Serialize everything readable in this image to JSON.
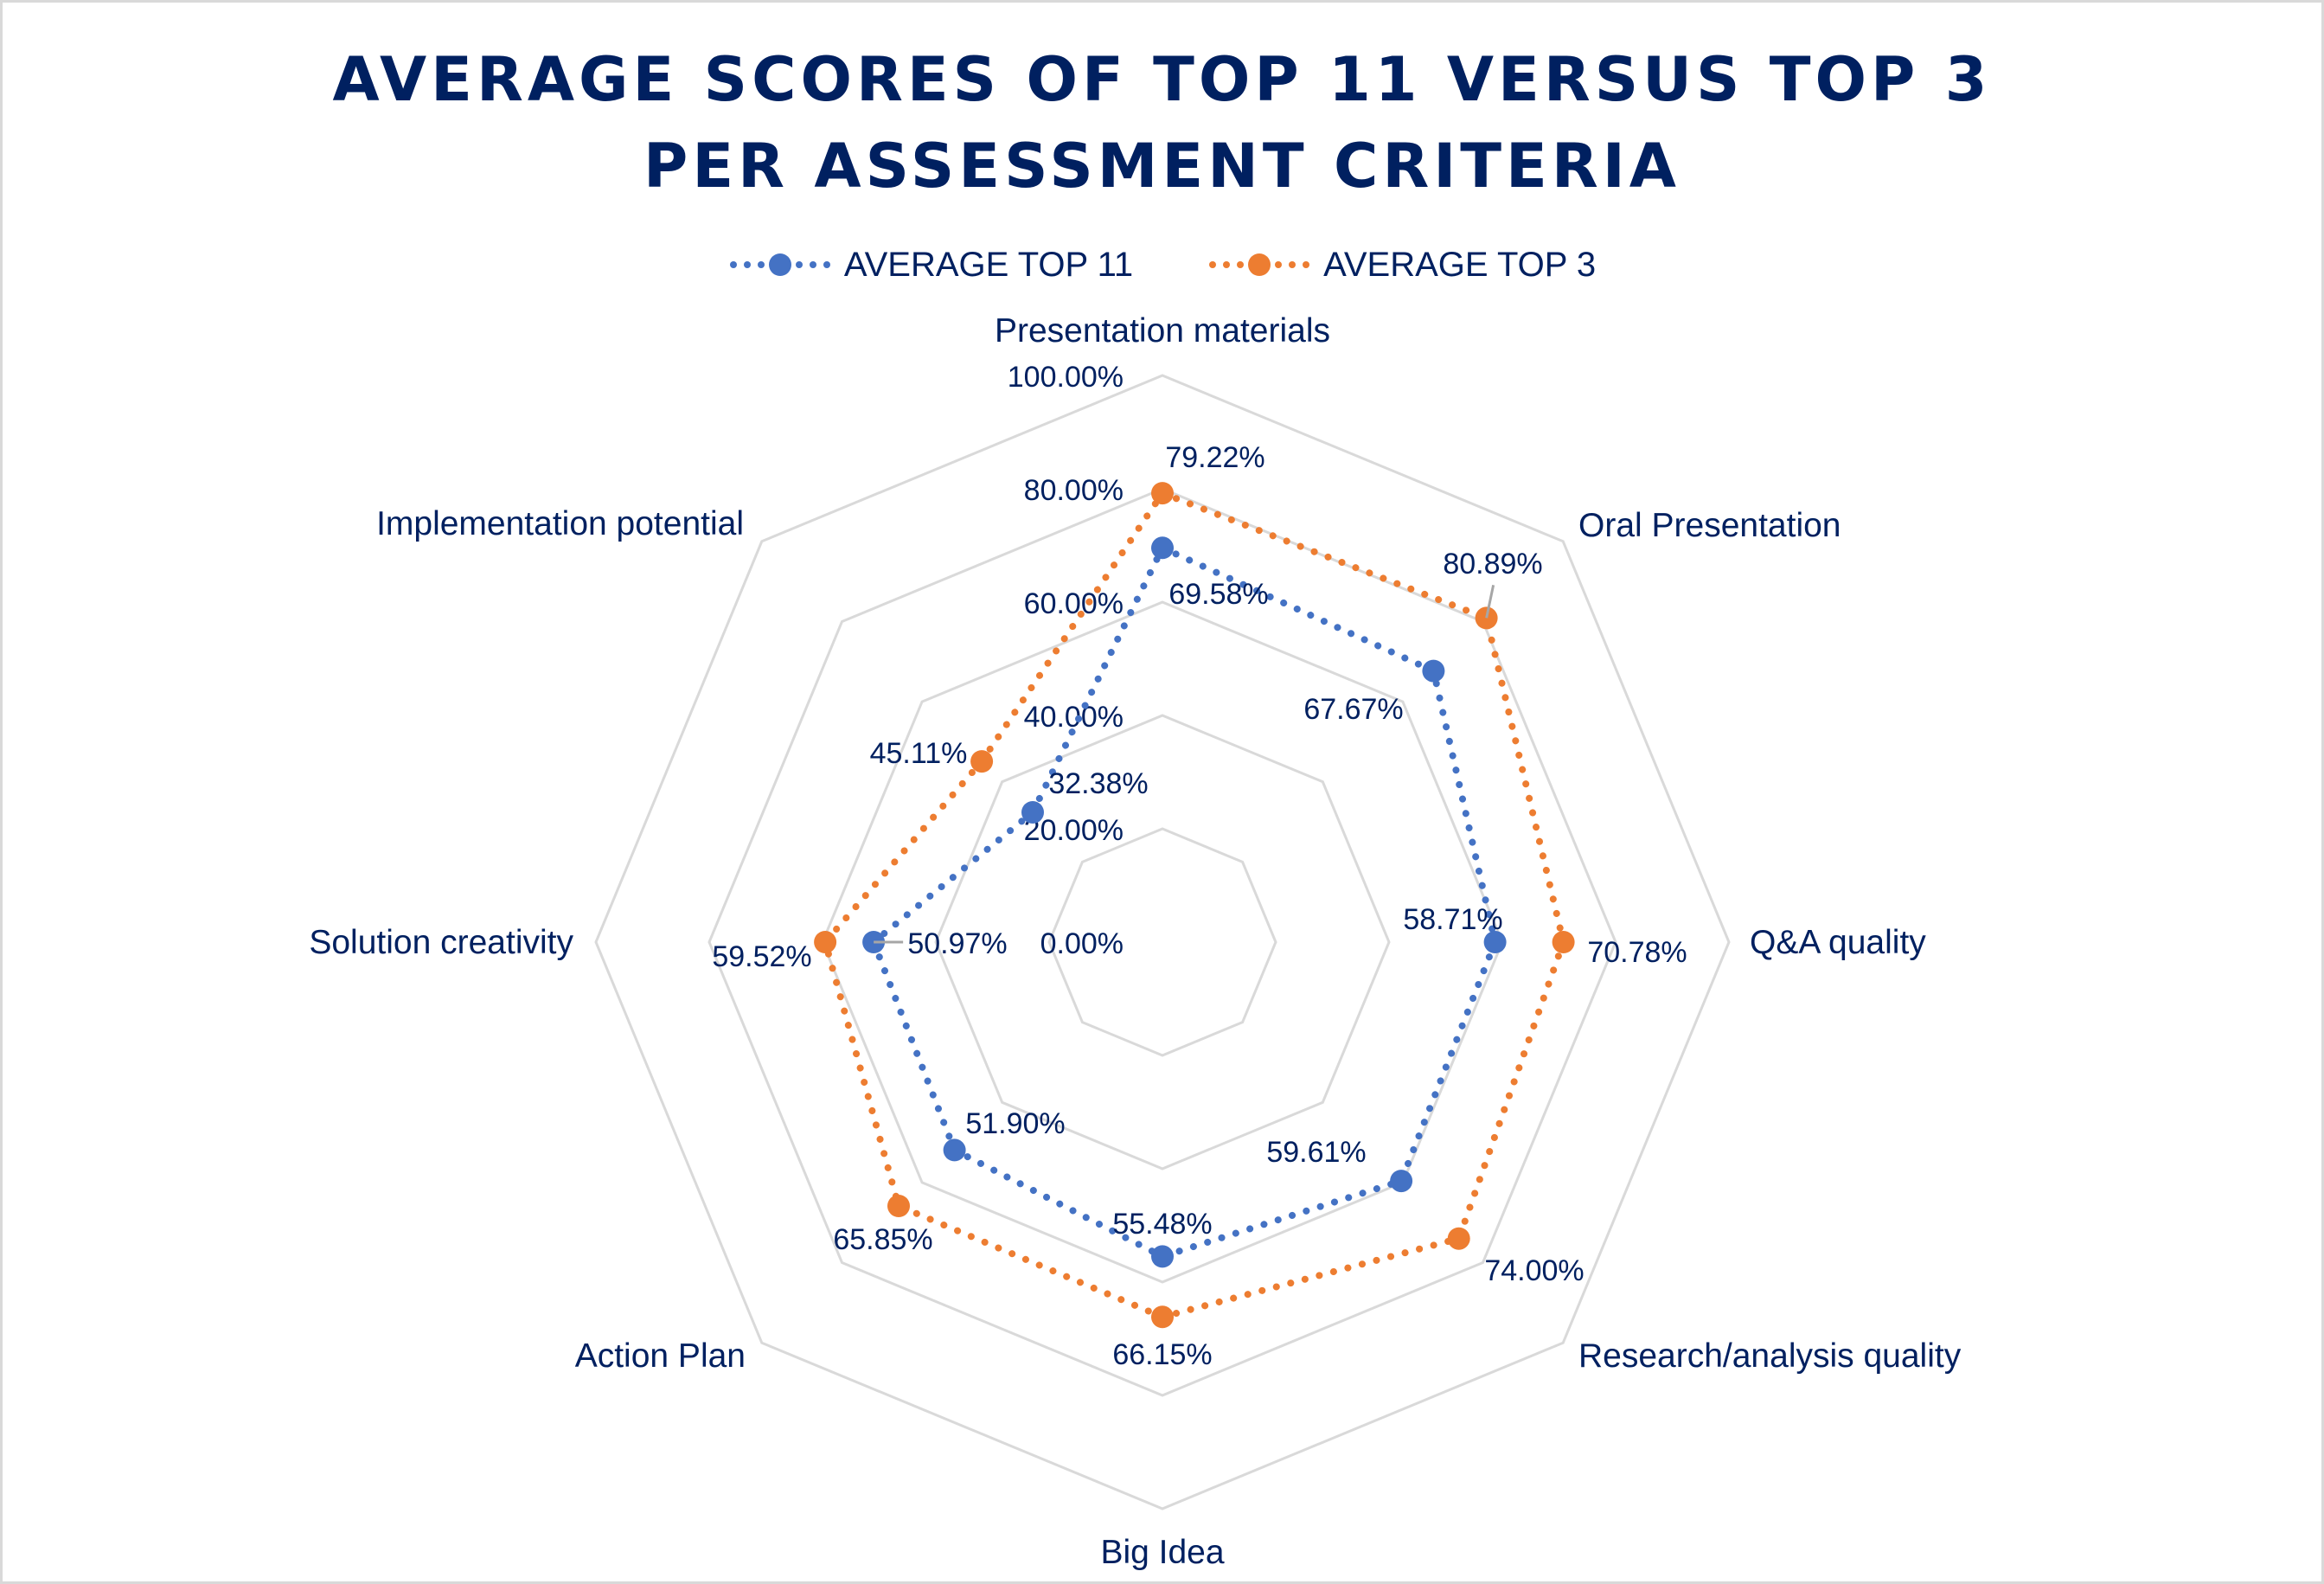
{
  "chart_data": {
    "type": "radar",
    "title": [
      "AVERAGE SCORES OF TOP 11 VERSUS TOP 3",
      "PER ASSESSMENT CRITERIA"
    ],
    "categories": [
      "Presentation materials",
      "Oral Presentation",
      "Q&A quality",
      "Research/analysis quality",
      "Big Idea",
      "Action Plan",
      "Solution creativity",
      "Implementation potential"
    ],
    "radial_range": [
      0,
      100
    ],
    "radial_ticks": [
      0,
      20,
      40,
      60,
      80,
      100
    ],
    "radial_tick_labels": [
      "0.00%",
      "20.00%",
      "40.00%",
      "60.00%",
      "80.00%",
      "100.00%"
    ],
    "grid": true,
    "legend_position": "top",
    "series": [
      {
        "name": "AVERAGE TOP 11",
        "color": "#4472c4",
        "line_style": "dotted",
        "values": [
          69.58,
          67.67,
          58.71,
          59.61,
          55.48,
          51.9,
          50.97,
          32.38
        ],
        "labels": [
          "69.58%",
          "67.67%",
          "58.71%",
          "59.61%",
          "55.48%",
          "51.90%",
          "50.97%",
          "32.38%"
        ]
      },
      {
        "name": "AVERAGE TOP 3",
        "color": "#ed7d31",
        "line_style": "dotted",
        "values": [
          79.22,
          80.89,
          70.78,
          74.0,
          66.15,
          65.85,
          59.52,
          45.11
        ],
        "labels": [
          "79.22%",
          "80.89%",
          "70.78%",
          "74.00%",
          "66.15%",
          "65.85%",
          "59.52%",
          "45.11%"
        ]
      }
    ]
  },
  "colors": {
    "text": "#002060",
    "grid": "#d9d9d9",
    "leader": "#a6a6a6"
  }
}
